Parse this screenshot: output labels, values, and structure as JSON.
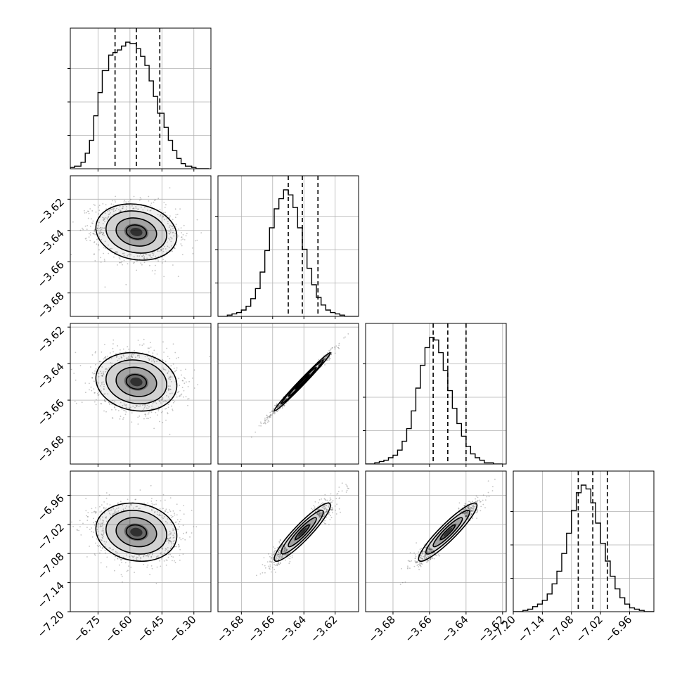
{
  "chart_data": {
    "type": "corner",
    "title": "",
    "n_params": 4,
    "params": [
      {
        "label": "",
        "range": [
          -6.88,
          -6.22
        ],
        "ticks": [
          -6.75,
          -6.6,
          -6.45,
          -6.3
        ],
        "tick_labels": [
          "−6.75",
          "−6.60",
          "−6.45",
          "−6.30"
        ],
        "mean": -6.57,
        "sd": 0.095,
        "quantiles": [
          -6.67,
          -6.57,
          -6.46
        ]
      },
      {
        "label": "",
        "range": [
          -3.695,
          -3.605
        ],
        "ticks": [
          -3.68,
          -3.66,
          -3.64,
          -3.62
        ],
        "tick_labels": [
          "−3.68",
          "−3.66",
          "−3.64",
          "−3.62"
        ],
        "mean": -3.641,
        "sd": 0.009,
        "quantiles": [
          -3.65,
          -3.641,
          -3.631
        ]
      },
      {
        "label": "",
        "range": [
          -3.695,
          -3.618
        ],
        "ticks": [
          -3.68,
          -3.66,
          -3.64,
          -3.62
        ],
        "tick_labels": [
          "−3.68",
          "−3.66",
          "−3.64",
          "−3.62"
        ],
        "mean": -3.65,
        "sd": 0.008,
        "quantiles": [
          -3.658,
          -3.65,
          -3.64
        ]
      },
      {
        "label": "",
        "range": [
          -7.2,
          -6.91
        ],
        "ticks": [
          -7.2,
          -7.14,
          -7.08,
          -7.02,
          -6.96
        ],
        "tick_labels": [
          "−7.20",
          "−7.14",
          "−7.08",
          "−7.02",
          "−6.96"
        ],
        "mean": -7.036,
        "sd": 0.03,
        "quantiles": [
          -7.066,
          -7.036,
          -7.006
        ]
      }
    ],
    "histograms": [
      {
        "param": 0,
        "bin_edges": [
          -6.88,
          -6.86,
          -6.83,
          -6.81,
          -6.79,
          -6.77,
          -6.75,
          -6.73,
          -6.7,
          -6.68,
          -6.66,
          -6.64,
          -6.62,
          -6.6,
          -6.57,
          -6.55,
          -6.53,
          -6.51,
          -6.49,
          -6.47,
          -6.44,
          -6.42,
          -6.4,
          -6.38,
          -6.36,
          -6.34,
          -6.31,
          -6.29,
          -6.27,
          -6.25,
          -6.23
        ],
        "counts": [
          1,
          2,
          5,
          12,
          22,
          41,
          59,
          76,
          88,
          90,
          92,
          95,
          98,
          97,
          93,
          87,
          80,
          68,
          56,
          43,
          32,
          22,
          14,
          8,
          4,
          2,
          1,
          0,
          0,
          0
        ]
      },
      {
        "param": 1,
        "bin_edges": [
          -3.695,
          -3.692,
          -3.689,
          -3.686,
          -3.683,
          -3.68,
          -3.677,
          -3.674,
          -3.671,
          -3.668,
          -3.665,
          -3.662,
          -3.659,
          -3.656,
          -3.653,
          -3.65,
          -3.647,
          -3.644,
          -3.641,
          -3.638,
          -3.635,
          -3.632,
          -3.629,
          -3.626,
          -3.623,
          -3.62,
          -3.617,
          -3.614,
          -3.611,
          -3.608,
          -3.605
        ],
        "counts": [
          0,
          0,
          1,
          2,
          3,
          5,
          8,
          14,
          22,
          35,
          52,
          70,
          85,
          93,
          100,
          96,
          86,
          70,
          53,
          38,
          25,
          15,
          9,
          5,
          3,
          2,
          1,
          0,
          0,
          0
        ]
      },
      {
        "param": 2,
        "bin_edges": [
          -3.695,
          -3.6925,
          -3.69,
          -3.6875,
          -3.685,
          -3.6825,
          -3.68,
          -3.6775,
          -3.675,
          -3.6725,
          -3.67,
          -3.6675,
          -3.665,
          -3.6625,
          -3.66,
          -3.6575,
          -3.655,
          -3.6525,
          -3.65,
          -3.6475,
          -3.645,
          -3.6425,
          -3.64,
          -3.6375,
          -3.635,
          -3.6325,
          -3.63,
          -3.6275,
          -3.625,
          -3.6225,
          -3.62
        ],
        "counts": [
          0,
          0,
          1,
          2,
          3,
          5,
          7,
          11,
          18,
          28,
          42,
          60,
          78,
          92,
          100,
          98,
          88,
          74,
          58,
          44,
          32,
          22,
          14,
          8,
          5,
          3,
          1,
          1,
          0,
          0
        ]
      },
      {
        "param": 3,
        "bin_edges": [
          -7.2,
          -7.19,
          -7.18,
          -7.17,
          -7.16,
          -7.15,
          -7.14,
          -7.13,
          -7.12,
          -7.11,
          -7.1,
          -7.09,
          -7.08,
          -7.07,
          -7.06,
          -7.05,
          -7.04,
          -7.03,
          -7.02,
          -7.01,
          -7.0,
          -6.99,
          -6.98,
          -6.97,
          -6.96,
          -6.95,
          -6.94,
          -6.93,
          -6.92,
          -6.91,
          -6.9
        ],
        "counts": [
          0,
          0,
          1,
          2,
          4,
          6,
          9,
          14,
          22,
          32,
          46,
          62,
          80,
          94,
          100,
          97,
          86,
          70,
          54,
          40,
          28,
          18,
          11,
          6,
          3,
          2,
          1,
          0,
          0,
          0
        ]
      }
    ],
    "correlations": [
      {
        "x": 0,
        "y": 1,
        "r": -0.15
      },
      {
        "x": 0,
        "y": 2,
        "r": -0.12
      },
      {
        "x": 0,
        "y": 3,
        "r": -0.12
      },
      {
        "x": 1,
        "y": 2,
        "r": 0.99
      },
      {
        "x": 1,
        "y": 3,
        "r": 0.92
      },
      {
        "x": 2,
        "y": 3,
        "r": 0.92
      }
    ],
    "contour_levels": [
      0.5,
      1.0,
      1.5,
      2.0
    ],
    "grid": true,
    "colors": {
      "line": "#000000",
      "grid": "#b0b0b0",
      "scatter": "#555555"
    }
  }
}
